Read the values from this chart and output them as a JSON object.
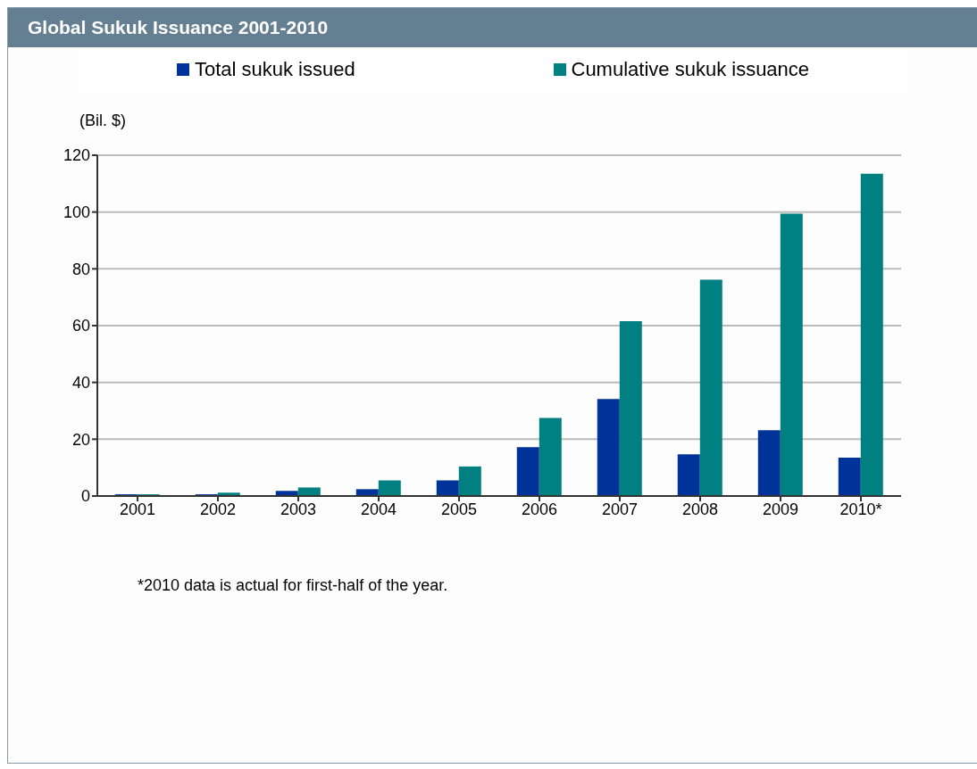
{
  "chart_data": {
    "type": "bar",
    "title": "Global Sukuk Issuance 2001-2010",
    "ylabel": "(Bil. $)",
    "categories": [
      "2001",
      "2002",
      "2003",
      "2004",
      "2005",
      "2006",
      "2007",
      "2008",
      "2009",
      "2010*"
    ],
    "series": [
      {
        "name": "Total sukuk issued",
        "color": "#003399",
        "values": [
          0.6,
          0.6,
          1.8,
          2.4,
          5.5,
          17.2,
          34.2,
          14.7,
          23.2,
          13.5
        ]
      },
      {
        "name": "Cumulative sukuk issuance",
        "color": "#008080",
        "values": [
          0.6,
          1.2,
          3.0,
          5.5,
          10.4,
          27.5,
          61.6,
          76.2,
          99.4,
          113.5
        ]
      }
    ],
    "ylim": [
      0,
      120
    ],
    "yticks": [
      0,
      20,
      40,
      60,
      80,
      100,
      120
    ],
    "grid": "y",
    "legend": "top",
    "annotations": [
      "*2010 data is actual for first-half of the year."
    ]
  }
}
